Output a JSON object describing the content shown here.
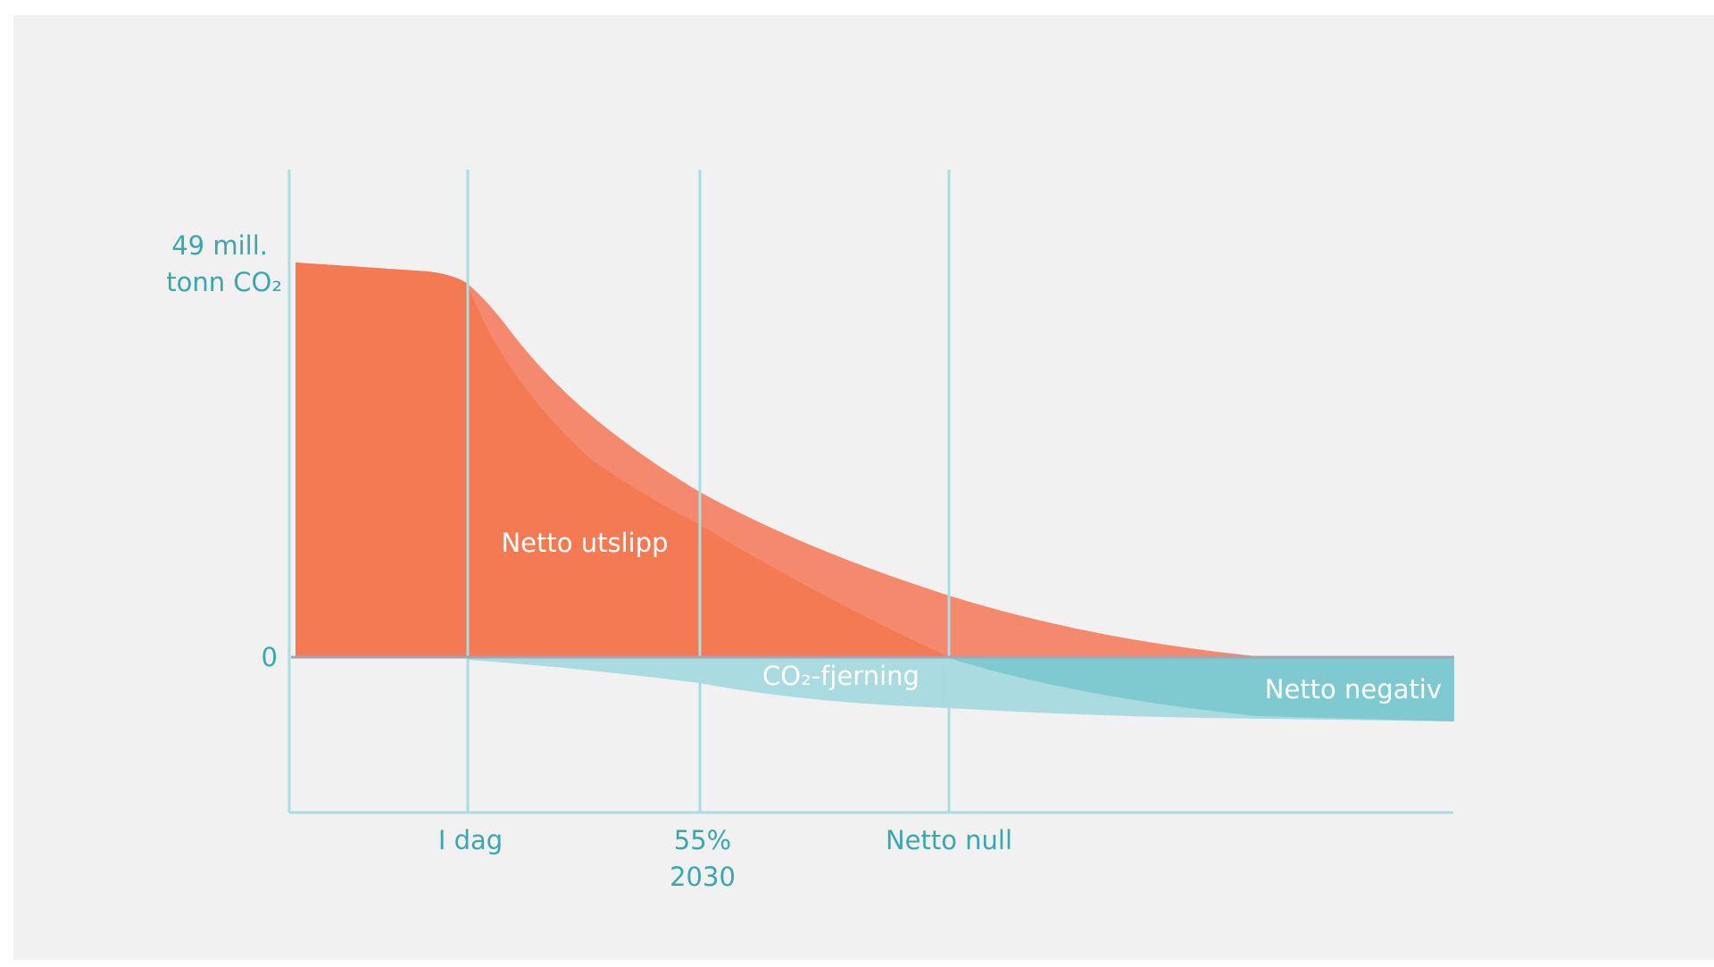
{
  "y_axis": {
    "top_label": [
      "49 mill.",
      "tonn CO₂"
    ],
    "zero_label": "0"
  },
  "x_axis": {
    "labels": [
      "I dag",
      "55%",
      "2030",
      "Netto null"
    ]
  },
  "areas": {
    "emissions": "Netto utslipp",
    "removal": "CO₂-fjerning",
    "negative": "Netto negativ"
  }
}
